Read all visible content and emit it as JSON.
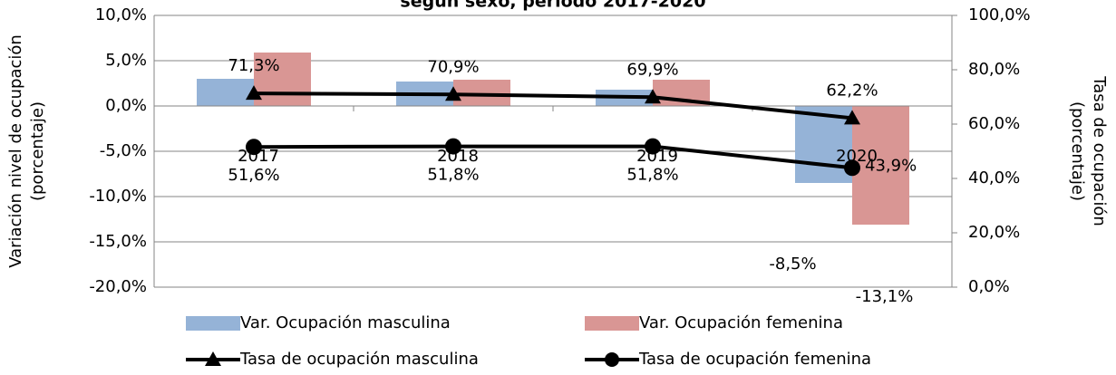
{
  "chart_data": {
    "type": "bar_line",
    "title": "según sexo, periodo 2017-2020",
    "y_label": [
      "Variación nivel de ocupación",
      "(porcentaje)"
    ],
    "y2_label": [
      "Tasa de ocupación",
      "(porcentaje)"
    ],
    "categories": [
      "2017",
      "2018",
      "2019",
      "2020"
    ],
    "series": [
      {
        "name": "Var. Ocupación masculina",
        "kind": "bar",
        "color": "#95b3d7",
        "values": [
          3.0,
          2.7,
          1.8,
          -8.5
        ],
        "value_labels": [
          null,
          null,
          null,
          "-8,5%"
        ]
      },
      {
        "name": "Var. Ocupación femenina",
        "kind": "bar",
        "color": "#d99694",
        "values": [
          5.9,
          2.9,
          2.9,
          -13.1
        ],
        "value_labels": [
          null,
          null,
          null,
          "-13,1%"
        ]
      },
      {
        "name": "Tasa de ocupación masculina",
        "kind": "line",
        "marker": "triangle",
        "axis": "y2",
        "color": "#000000",
        "values": [
          71.3,
          70.9,
          69.9,
          62.2
        ],
        "value_labels": [
          "71,3%",
          "70,9%",
          "69,9%",
          "62,2%"
        ]
      },
      {
        "name": "Tasa de ocupación femenina",
        "kind": "line",
        "marker": "circle",
        "axis": "y2",
        "color": "#000000",
        "values": [
          51.6,
          51.8,
          51.8,
          43.9
        ],
        "value_labels": [
          "51,6%",
          "51,8%",
          "51,8%",
          "43,9%"
        ]
      }
    ],
    "ylim": [
      -20,
      10
    ],
    "yticks": [
      {
        "value": -20,
        "label": "-20,0%"
      },
      {
        "value": -15,
        "label": "-15,0%"
      },
      {
        "value": -10,
        "label": "-10,0%"
      },
      {
        "value": -5,
        "label": "-5,0%"
      },
      {
        "value": 0,
        "label": "0,0%"
      },
      {
        "value": 5,
        "label": "5,0%"
      },
      {
        "value": 10,
        "label": "10,0%"
      }
    ],
    "y2lim": [
      0,
      100
    ],
    "y2ticks": [
      {
        "value": 0,
        "label": "0,0%"
      },
      {
        "value": 20,
        "label": "20,0%"
      },
      {
        "value": 40,
        "label": "40,0%"
      },
      {
        "value": 60,
        "label": "60,0%"
      },
      {
        "value": 80,
        "label": "80,0%"
      },
      {
        "value": 100,
        "label": "100,0%"
      }
    ],
    "grid": true,
    "legend": "bottom"
  }
}
